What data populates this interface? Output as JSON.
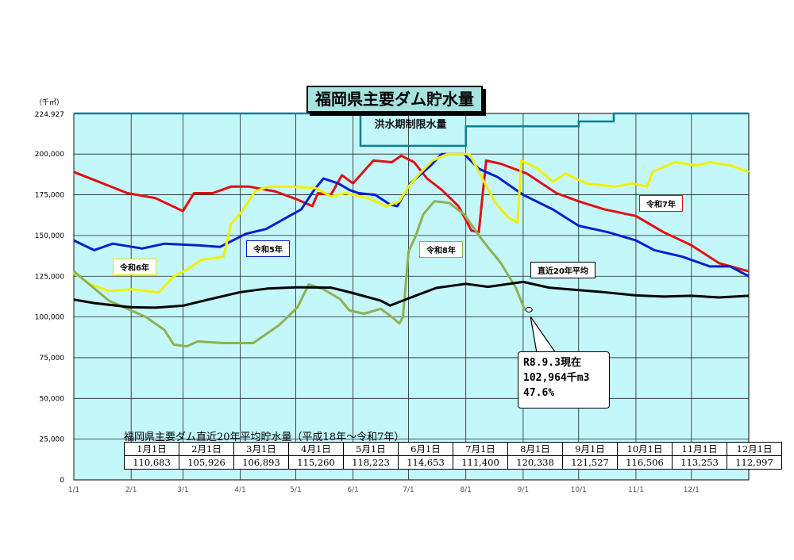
{
  "title": "福岡県主要ダム貯水量",
  "unit_label": "（千㎥）",
  "flood_label": "洪水期制限水量",
  "callout": {
    "line1": "R8.9.3現在",
    "line2": "102,964千m3",
    "line3": "47.6%"
  },
  "avg_table": {
    "title": "福岡県主要ダム直近20年平均貯水量（平成18年～令和7年）",
    "months": [
      "1月1日",
      "2月1日",
      "3月1日",
      "4月1日",
      "5月1日",
      "6月1日",
      "7月1日",
      "8月1日",
      "9月1日",
      "10月1日",
      "11月1日",
      "12月1日"
    ],
    "values": [
      "110,683",
      "105,926",
      "106,893",
      "115,260",
      "118,223",
      "114,653",
      "111,400",
      "120,338",
      "121,527",
      "116,506",
      "113,253",
      "112,997"
    ]
  },
  "series_labels": {
    "r5": "令和5年",
    "r6": "令和6年",
    "r7": "令和7年",
    "r8": "令和8年",
    "avg": "直近20年平均"
  },
  "chart_data": {
    "type": "line",
    "x_unit": "day_of_year",
    "ylim": [
      0,
      224927
    ],
    "y_max_label": "224,927",
    "y_ticks": [
      0,
      25000,
      50000,
      75000,
      100000,
      125000,
      150000,
      175000,
      200000
    ],
    "y_tick_labels": [
      "0",
      "25,000",
      "50,000",
      "75,000",
      "100,000",
      "125,000",
      "150,000",
      "175,000",
      "200,000"
    ],
    "x_ticks": [
      1,
      32,
      60,
      91,
      121,
      152,
      182,
      213,
      244,
      274,
      305,
      335
    ],
    "x_tick_labels": [
      "1/1",
      "2/1",
      "3/1",
      "4/1",
      "5/1",
      "6/1",
      "7/1",
      "8/1",
      "9/1",
      "10/1",
      "11/1",
      "12/1"
    ],
    "x_max": 366,
    "grid": true,
    "background": "#c4f7fa",
    "flood_limit": [
      [
        1,
        224927
      ],
      [
        156,
        224927
      ],
      [
        156,
        205000
      ],
      [
        213,
        205000
      ],
      [
        213,
        217000
      ],
      [
        274,
        217000
      ],
      [
        274,
        220000
      ],
      [
        293,
        220000
      ],
      [
        293,
        224927
      ],
      [
        366,
        224927
      ]
    ],
    "series": [
      {
        "key": "r7",
        "color": "#e01010",
        "points": [
          [
            1,
            189000
          ],
          [
            30,
            176000
          ],
          [
            45,
            173000
          ],
          [
            60,
            165000
          ],
          [
            66,
            176000
          ],
          [
            76,
            176000
          ],
          [
            86,
            180000
          ],
          [
            96,
            180000
          ],
          [
            110,
            177000
          ],
          [
            122,
            172000
          ],
          [
            130,
            168000
          ],
          [
            133,
            176000
          ],
          [
            140,
            175000
          ],
          [
            146,
            187000
          ],
          [
            152,
            182000
          ],
          [
            163,
            196000
          ],
          [
            173,
            195000
          ],
          [
            178,
            199000
          ],
          [
            185,
            195000
          ],
          [
            192,
            185000
          ],
          [
            200,
            178000
          ],
          [
            209,
            168000
          ],
          [
            216,
            153000
          ],
          [
            220,
            152000
          ],
          [
            224,
            196000
          ],
          [
            232,
            194000
          ],
          [
            246,
            188000
          ],
          [
            262,
            176000
          ],
          [
            274,
            171000
          ],
          [
            288,
            166000
          ],
          [
            305,
            162000
          ],
          [
            320,
            152000
          ],
          [
            335,
            144000
          ],
          [
            350,
            133000
          ],
          [
            366,
            128000
          ]
        ]
      },
      {
        "key": "r5",
        "color": "#0a1ed0",
        "points": [
          [
            1,
            147000
          ],
          [
            12,
            141000
          ],
          [
            22,
            145000
          ],
          [
            38,
            142000
          ],
          [
            50,
            145000
          ],
          [
            68,
            144000
          ],
          [
            80,
            143000
          ],
          [
            94,
            151000
          ],
          [
            105,
            154000
          ],
          [
            116,
            161000
          ],
          [
            124,
            166000
          ],
          [
            131,
            178000
          ],
          [
            136,
            185000
          ],
          [
            144,
            182000
          ],
          [
            150,
            178000
          ],
          [
            155,
            176000
          ],
          [
            164,
            175000
          ],
          [
            172,
            169000
          ],
          [
            176,
            168000
          ],
          [
            183,
            182000
          ],
          [
            194,
            193000
          ],
          [
            200,
            200000
          ],
          [
            212,
            200000
          ],
          [
            220,
            191000
          ],
          [
            230,
            186000
          ],
          [
            244,
            175000
          ],
          [
            260,
            166000
          ],
          [
            274,
            156000
          ],
          [
            290,
            152000
          ],
          [
            305,
            147000
          ],
          [
            315,
            141000
          ],
          [
            330,
            137000
          ],
          [
            345,
            131000
          ],
          [
            356,
            131000
          ],
          [
            366,
            125000
          ]
        ]
      },
      {
        "key": "r6",
        "color": "#f0f000",
        "points": [
          [
            1,
            127000
          ],
          [
            10,
            120000
          ],
          [
            20,
            116000
          ],
          [
            33,
            117000
          ],
          [
            47,
            115000
          ],
          [
            55,
            125000
          ],
          [
            62,
            129000
          ],
          [
            70,
            135000
          ],
          [
            82,
            137000
          ],
          [
            86,
            157000
          ],
          [
            92,
            165000
          ],
          [
            99,
            177000
          ],
          [
            106,
            180000
          ],
          [
            118,
            180000
          ],
          [
            132,
            179000
          ],
          [
            140,
            174000
          ],
          [
            148,
            176000
          ],
          [
            160,
            173000
          ],
          [
            170,
            168000
          ],
          [
            177,
            171000
          ],
          [
            182,
            180000
          ],
          [
            188,
            188000
          ],
          [
            195,
            196000
          ],
          [
            203,
            200000
          ],
          [
            215,
            200000
          ],
          [
            221,
            187000
          ],
          [
            229,
            170000
          ],
          [
            236,
            161000
          ],
          [
            241,
            158000
          ],
          [
            243,
            196000
          ],
          [
            252,
            191000
          ],
          [
            260,
            183000
          ],
          [
            267,
            188000
          ],
          [
            278,
            182000
          ],
          [
            294,
            180000
          ],
          [
            303,
            182000
          ],
          [
            311,
            180000
          ],
          [
            314,
            189000
          ],
          [
            326,
            195000
          ],
          [
            338,
            193000
          ],
          [
            345,
            195000
          ],
          [
            356,
            193000
          ],
          [
            366,
            189000
          ]
        ]
      },
      {
        "key": "r8",
        "color": "#90b050",
        "points": [
          [
            1,
            128000
          ],
          [
            20,
            110000
          ],
          [
            40,
            100000
          ],
          [
            50,
            92000
          ],
          [
            55,
            83000
          ],
          [
            62,
            82000
          ],
          [
            68,
            85000
          ],
          [
            82,
            84000
          ],
          [
            98,
            84000
          ],
          [
            112,
            95000
          ],
          [
            122,
            106000
          ],
          [
            128,
            120000
          ],
          [
            136,
            117000
          ],
          [
            145,
            111000
          ],
          [
            150,
            104000
          ],
          [
            158,
            102000
          ],
          [
            167,
            105000
          ],
          [
            173,
            100000
          ],
          [
            177,
            96000
          ],
          [
            179,
            100000
          ],
          [
            182,
            140000
          ],
          [
            186,
            150000
          ],
          [
            190,
            163000
          ],
          [
            196,
            171000
          ],
          [
            204,
            170000
          ],
          [
            212,
            163000
          ],
          [
            222,
            147000
          ],
          [
            232,
            133000
          ],
          [
            240,
            118000
          ],
          [
            245,
            104000
          ]
        ]
      },
      {
        "key": "avg",
        "color": "#000000",
        "points": [
          [
            1,
            110683
          ],
          [
            12,
            108500
          ],
          [
            32,
            105926
          ],
          [
            45,
            105700
          ],
          [
            60,
            106893
          ],
          [
            75,
            111000
          ],
          [
            91,
            115260
          ],
          [
            106,
            117500
          ],
          [
            121,
            118223
          ],
          [
            140,
            118000
          ],
          [
            152,
            114653
          ],
          [
            167,
            110000
          ],
          [
            172,
            107000
          ],
          [
            182,
            111400
          ],
          [
            197,
            117800
          ],
          [
            213,
            120338
          ],
          [
            225,
            118500
          ],
          [
            244,
            121527
          ],
          [
            258,
            118000
          ],
          [
            274,
            116506
          ],
          [
            288,
            115200
          ],
          [
            305,
            113253
          ],
          [
            320,
            112500
          ],
          [
            335,
            112997
          ],
          [
            350,
            112000
          ],
          [
            366,
            113000
          ]
        ]
      }
    ]
  }
}
